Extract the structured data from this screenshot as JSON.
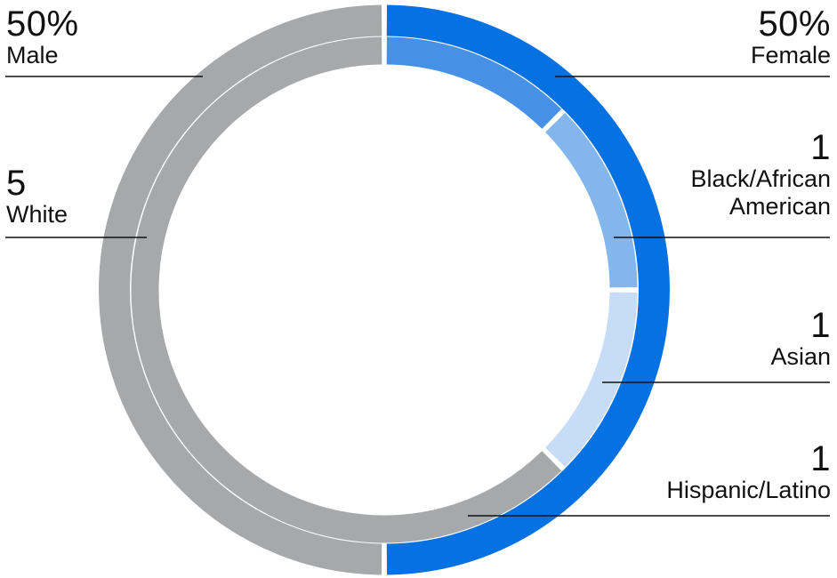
{
  "chart_data": {
    "type": "pie",
    "subtype": "nested-donut",
    "rings": [
      {
        "ring": "outer",
        "slices": [
          {
            "label": "Male",
            "value": 50,
            "display": "50%",
            "color": "#a7a8aa"
          },
          {
            "label": "Female",
            "value": 50,
            "display": "50%",
            "color": "#0671e3"
          }
        ]
      },
      {
        "ring": "inner",
        "slices": [
          {
            "label": "White",
            "value": 5,
            "display": "5",
            "color": "#a7a8aa"
          },
          {
            "label": "Black/African American",
            "value": 1,
            "display": "1",
            "color": "#4691e6"
          },
          {
            "label": "Asian",
            "value": 1,
            "display": "1",
            "color": "#84b6ee"
          },
          {
            "label": "Hispanic/Latino",
            "value": 1,
            "display": "1",
            "color": "#c7ddf7"
          }
        ]
      }
    ]
  },
  "labels": {
    "male": {
      "value": "50%",
      "name": "Male"
    },
    "female": {
      "value": "50%",
      "name": "Female"
    },
    "white": {
      "value": "5",
      "name": "White"
    },
    "black": {
      "value": "1",
      "name": "Black/African American"
    },
    "asian": {
      "value": "1",
      "name": "Asian"
    },
    "hispanic": {
      "value": "1",
      "name": "Hispanic/Latino"
    }
  }
}
